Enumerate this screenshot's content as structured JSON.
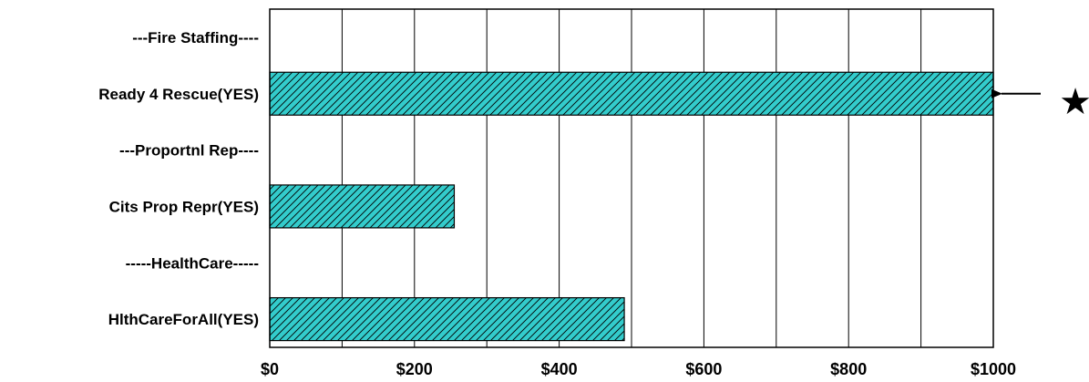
{
  "chart_data": {
    "type": "bar",
    "orientation": "horizontal",
    "categories": [
      "---Fire Staffing----",
      "Ready 4 Rescue(YES)",
      "---Proportnl Rep----",
      "Cits Prop Repr(YES)",
      "-----HealthCare-----",
      "HlthCareForAll(YES)"
    ],
    "values": [
      0,
      1000,
      0,
      255,
      0,
      490
    ],
    "xlim": [
      0,
      1000
    ],
    "xticks": [
      0,
      200,
      400,
      600,
      800,
      1000
    ],
    "xtick_labels": [
      "$0",
      "$200",
      "$400",
      "$600",
      "$800",
      "$1000"
    ],
    "minor_gridlines": [
      100,
      300,
      500,
      700,
      900
    ],
    "grid": true,
    "legend": "none",
    "bar_fill": "hatched",
    "colors": {
      "bar": "#33cccc",
      "hatch": "#000000",
      "grid": "#000000",
      "background": "#ffffff"
    },
    "annotations": [
      {
        "category": "Ready 4 Rescue(YES)",
        "arrow": "left-pointing",
        "marker_symbol": "★"
      }
    ]
  }
}
